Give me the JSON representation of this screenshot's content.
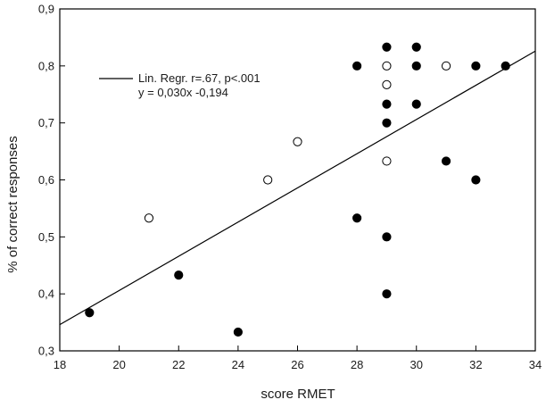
{
  "chart_data": {
    "type": "scatter",
    "xlabel": "score RMET",
    "ylabel": "% of correct responses",
    "xlim": [
      18,
      34
    ],
    "ylim": [
      0.3,
      0.9
    ],
    "x_ticks": [
      18,
      20,
      22,
      24,
      26,
      28,
      30,
      32,
      34
    ],
    "y_ticks": [
      0.3,
      0.4,
      0.5,
      0.6,
      0.7,
      0.8,
      0.9
    ],
    "x_tick_labels": [
      "18",
      "20",
      "22",
      "24",
      "26",
      "28",
      "30",
      "32",
      "34"
    ],
    "y_tick_labels": [
      "0,3",
      "0,4",
      "0,5",
      "0,6",
      "0,7",
      "0,8",
      "0,9"
    ],
    "grid": false,
    "legend_position": "top-left",
    "legend": {
      "line1": "Lin. Regr. r=.67, p<.001",
      "line2": "y = 0,030x -0,194"
    },
    "regression": {
      "slope": 0.03,
      "intercept": -0.194,
      "x_range": [
        18,
        34
      ]
    },
    "series": [
      {
        "marker": "filled",
        "color": "#000000",
        "points": [
          [
            19,
            0.367
          ],
          [
            22,
            0.433
          ],
          [
            24,
            0.333
          ],
          [
            28,
            0.8
          ],
          [
            28,
            0.533
          ],
          [
            29,
            0.833
          ],
          [
            29,
            0.733
          ],
          [
            29,
            0.7
          ],
          [
            29,
            0.5
          ],
          [
            29,
            0.4
          ],
          [
            30,
            0.833
          ],
          [
            30,
            0.8
          ],
          [
            30,
            0.733
          ],
          [
            31,
            0.633
          ],
          [
            32,
            0.8
          ],
          [
            32,
            0.6
          ],
          [
            33,
            0.8
          ]
        ]
      },
      {
        "marker": "open",
        "color": "#000000",
        "points": [
          [
            21,
            0.533
          ],
          [
            25,
            0.6
          ],
          [
            26,
            0.667
          ],
          [
            29,
            0.8
          ],
          [
            29,
            0.767
          ],
          [
            29,
            0.633
          ],
          [
            31,
            0.8
          ]
        ]
      }
    ]
  }
}
